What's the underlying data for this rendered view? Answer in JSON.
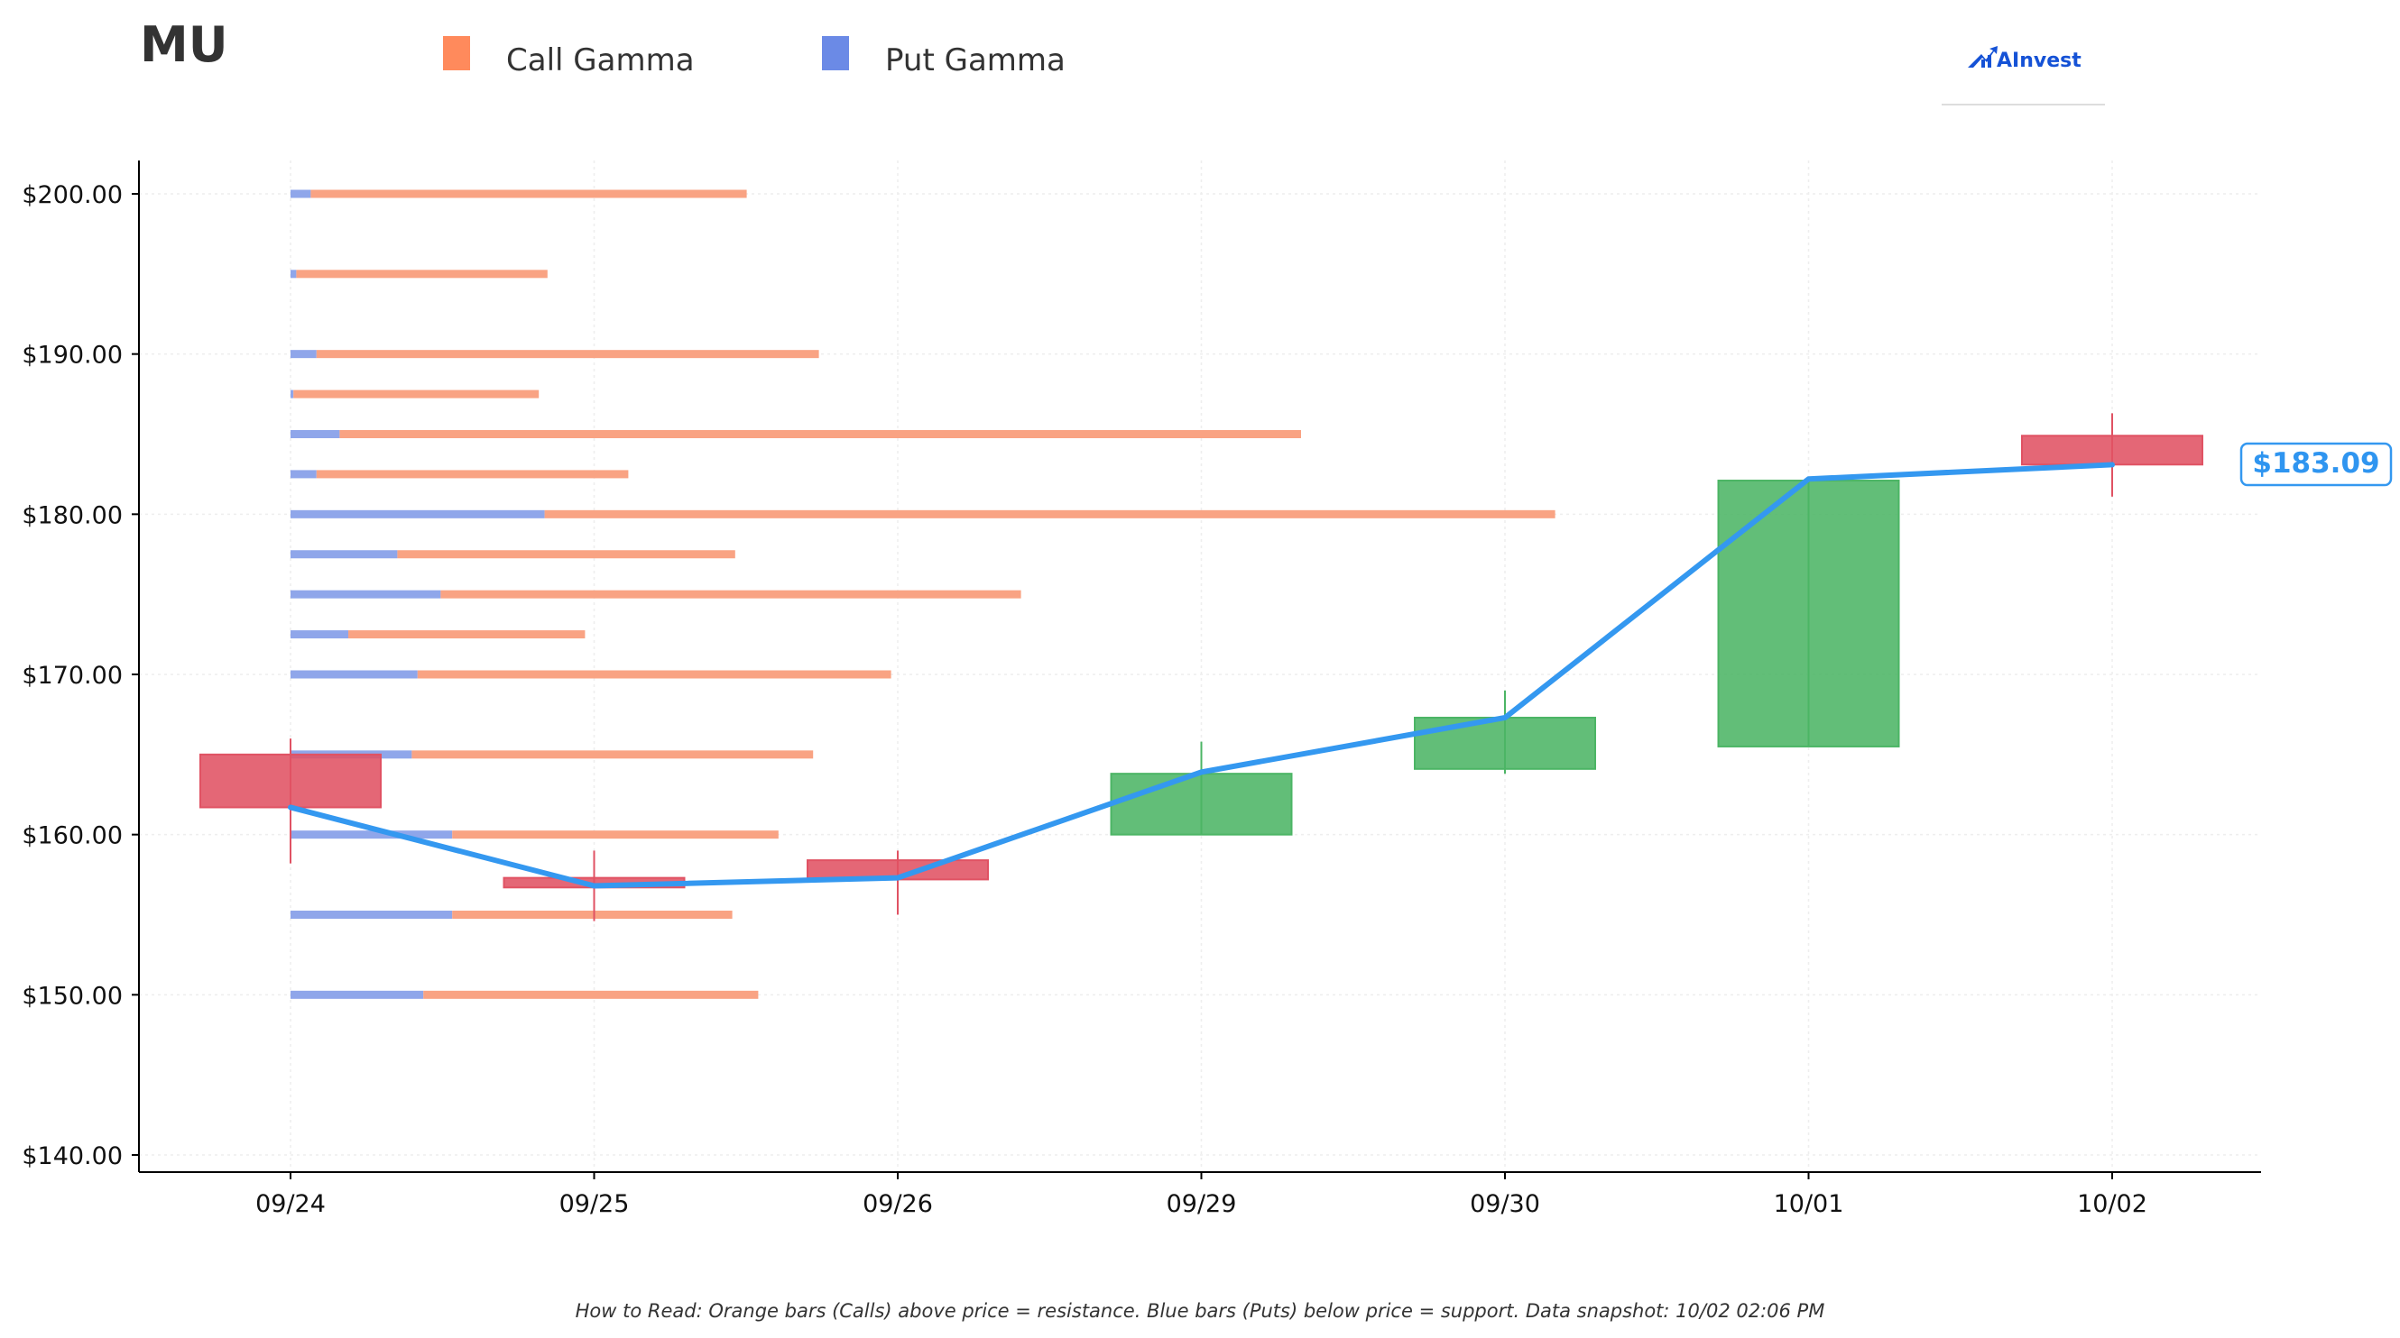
{
  "ticker": "MU",
  "legend": [
    {
      "label": "Call Gamma",
      "color": "#ff8a5c"
    },
    {
      "label": "Put Gamma",
      "color": "#6b8ae6"
    }
  ],
  "logo": {
    "text": "AInvest",
    "icon": "chart-arrow-icon",
    "color": "#1552d6"
  },
  "footer": "How to Read: Orange bars (Calls) above price = resistance. Blue bars (Puts) below price = support. Data snapshot: 10/02 02:06 PM",
  "current_price": {
    "label": "$183.09",
    "value": 183.09
  },
  "colors": {
    "up": "#4cb565",
    "down": "#e05263",
    "price_line": "#3498f0",
    "call_bar": "#f9a383",
    "put_bar": "#8fa6ea",
    "axis": "#000000",
    "grid": "#eeeeee"
  },
  "chart_data": {
    "type": "candlestick",
    "categories": [
      "09/24",
      "09/25",
      "09/26",
      "09/29",
      "09/30",
      "10/01",
      "10/02"
    ],
    "ylim": [
      139,
      202
    ],
    "yticks": [
      140,
      150,
      160,
      170,
      180,
      190,
      200
    ],
    "ytick_labels": [
      "$140.00",
      "$150.00",
      "$160.00",
      "$170.00",
      "$180.00",
      "$190.00",
      "$200.00"
    ],
    "grid": true,
    "legend_position": "top",
    "candles": [
      {
        "date": "09/24",
        "open": 165.0,
        "close": 161.7,
        "high": 166.0,
        "low": 158.2
      },
      {
        "date": "09/25",
        "open": 157.3,
        "close": 156.7,
        "high": 159.0,
        "low": 154.6
      },
      {
        "date": "09/26",
        "open": 158.4,
        "close": 157.2,
        "high": 159.0,
        "low": 155.0
      },
      {
        "date": "09/29",
        "open": 160.0,
        "close": 163.8,
        "high": 165.8,
        "low": 160.0
      },
      {
        "date": "09/30",
        "open": 164.1,
        "close": 167.3,
        "high": 169.0,
        "low": 163.8
      },
      {
        "date": "10/01",
        "open": 165.5,
        "close": 182.1,
        "high": 182.1,
        "low": 165.5
      },
      {
        "date": "10/02",
        "open": 184.9,
        "close": 183.1,
        "high": 186.3,
        "low": 181.1
      }
    ],
    "price_line": [
      161.7,
      156.8,
      157.3,
      163.9,
      167.3,
      182.2,
      183.09
    ],
    "gamma_levels": [
      {
        "strike": 200.0,
        "put": 0.07,
        "call": 1.51
      },
      {
        "strike": 195.0,
        "put": 0.02,
        "call": 0.87
      },
      {
        "strike": 190.0,
        "put": 0.09,
        "call": 1.74
      },
      {
        "strike": 187.5,
        "put": 0.01,
        "call": 0.85
      },
      {
        "strike": 185.0,
        "put": 0.17,
        "call": 3.33
      },
      {
        "strike": 182.5,
        "put": 0.09,
        "call": 1.08
      },
      {
        "strike": 180.0,
        "put": 0.88,
        "call": 3.5
      },
      {
        "strike": 177.5,
        "put": 0.37,
        "call": 1.17
      },
      {
        "strike": 175.0,
        "put": 0.52,
        "call": 2.01
      },
      {
        "strike": 172.5,
        "put": 0.2,
        "call": 0.82
      },
      {
        "strike": 170.0,
        "put": 0.44,
        "call": 1.64
      },
      {
        "strike": 165.0,
        "put": 0.42,
        "call": 1.39
      },
      {
        "strike": 160.0,
        "put": 0.56,
        "call": 1.13
      },
      {
        "strike": 155.0,
        "put": 0.56,
        "call": 0.97
      },
      {
        "strike": 150.0,
        "put": 0.46,
        "call": 1.16
      }
    ]
  }
}
